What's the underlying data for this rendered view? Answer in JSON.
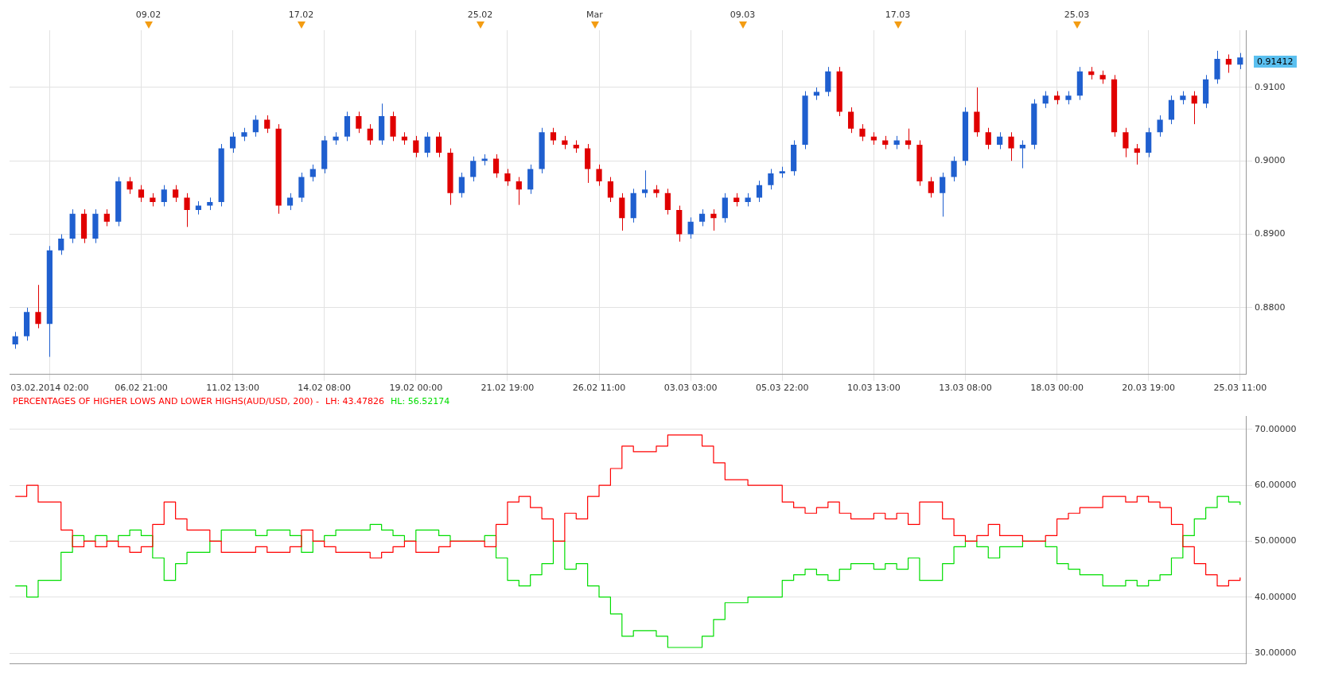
{
  "chart_data": [
    {
      "type": "candlestick",
      "categories": [
        null,
        null,
        null,
        "03.02.2014 02:00",
        null,
        null,
        null,
        null,
        null,
        null,
        null,
        "06.02 21:00",
        null,
        null,
        null,
        null,
        null,
        null,
        null,
        "11.02 13:00",
        null,
        null,
        null,
        null,
        null,
        null,
        null,
        "14.02 08:00",
        null,
        null,
        null,
        null,
        null,
        null,
        null,
        "19.02 00:00",
        null,
        null,
        null,
        null,
        null,
        null,
        null,
        "21.02 19:00",
        null,
        null,
        null,
        null,
        null,
        null,
        null,
        "26.02 11:00",
        null,
        null,
        null,
        null,
        null,
        null,
        null,
        "03.03 03:00",
        null,
        null,
        null,
        null,
        null,
        null,
        null,
        "05.03 22:00",
        null,
        null,
        null,
        null,
        null,
        null,
        null,
        "10.03 13:00",
        null,
        null,
        null,
        null,
        null,
        null,
        null,
        "13.03 08:00",
        null,
        null,
        null,
        null,
        null,
        null,
        null,
        "18.03 00:00",
        null,
        null,
        null,
        null,
        null,
        null,
        null,
        "20.03 19:00",
        null,
        null,
        null,
        null,
        null,
        null,
        null,
        "25.03 11:00"
      ],
      "ohlc": [
        [
          0.875,
          0.8767,
          0.8744,
          0.8761
        ],
        [
          0.8761,
          0.88,
          0.8755,
          0.8794
        ],
        [
          0.8794,
          0.8831,
          0.8772,
          0.8778
        ],
        [
          0.8778,
          0.8884,
          0.8733,
          0.8878
        ],
        [
          0.8878,
          0.89,
          0.8872,
          0.8894
        ],
        [
          0.8894,
          0.8934,
          0.8888,
          0.8928
        ],
        [
          0.8928,
          0.8934,
          0.8888,
          0.8894
        ],
        [
          0.8894,
          0.8934,
          0.8888,
          0.8928
        ],
        [
          0.8928,
          0.8934,
          0.8911,
          0.8917
        ],
        [
          0.8917,
          0.8978,
          0.8911,
          0.8972
        ],
        [
          0.8972,
          0.8978,
          0.8955,
          0.8961
        ],
        [
          0.8961,
          0.8967,
          0.8944,
          0.895
        ],
        [
          0.895,
          0.8956,
          0.8938,
          0.8944
        ],
        [
          0.8944,
          0.8967,
          0.8938,
          0.8961
        ],
        [
          0.8961,
          0.8967,
          0.8944,
          0.895
        ],
        [
          0.895,
          0.8956,
          0.891,
          0.8933
        ],
        [
          0.8933,
          0.8945,
          0.8927,
          0.8939
        ],
        [
          0.8939,
          0.895,
          0.8933,
          0.8944
        ],
        [
          0.8944,
          0.9023,
          0.8938,
          0.9017
        ],
        [
          0.9017,
          0.9039,
          0.9011,
          0.9033
        ],
        [
          0.9033,
          0.9045,
          0.9027,
          0.9039
        ],
        [
          0.9039,
          0.9062,
          0.9033,
          0.9056
        ],
        [
          0.9056,
          0.9062,
          0.9038,
          0.9044
        ],
        [
          0.9044,
          0.905,
          0.8928,
          0.8939
        ],
        [
          0.8939,
          0.8956,
          0.8933,
          0.895
        ],
        [
          0.895,
          0.8984,
          0.8944,
          0.8978
        ],
        [
          0.8978,
          0.8995,
          0.8972,
          0.8989
        ],
        [
          0.8989,
          0.9034,
          0.8983,
          0.9028
        ],
        [
          0.9028,
          0.9039,
          0.9022,
          0.9033
        ],
        [
          0.9033,
          0.9067,
          0.9027,
          0.9061
        ],
        [
          0.9061,
          0.9067,
          0.9038,
          0.9044
        ],
        [
          0.9044,
          0.905,
          0.9022,
          0.9028
        ],
        [
          0.9028,
          0.9078,
          0.9022,
          0.9061
        ],
        [
          0.9061,
          0.9067,
          0.9027,
          0.9033
        ],
        [
          0.9033,
          0.9039,
          0.9022,
          0.9028
        ],
        [
          0.9028,
          0.9034,
          0.9005,
          0.9011
        ],
        [
          0.9011,
          0.9039,
          0.9005,
          0.9033
        ],
        [
          0.9033,
          0.9039,
          0.9005,
          0.9011
        ],
        [
          0.9011,
          0.9017,
          0.894,
          0.8956
        ],
        [
          0.8956,
          0.8984,
          0.895,
          0.8978
        ],
        [
          0.8978,
          0.9006,
          0.8972,
          0.9
        ],
        [
          0.9,
          0.9009,
          0.8994,
          0.9003
        ],
        [
          0.9003,
          0.9009,
          0.8977,
          0.8983
        ],
        [
          0.8983,
          0.8989,
          0.8966,
          0.8972
        ],
        [
          0.8972,
          0.8978,
          0.894,
          0.8961
        ],
        [
          0.8961,
          0.8995,
          0.8955,
          0.8989
        ],
        [
          0.8989,
          0.9045,
          0.8983,
          0.9039
        ],
        [
          0.9039,
          0.9045,
          0.9022,
          0.9028
        ],
        [
          0.9028,
          0.9034,
          0.9016,
          0.9022
        ],
        [
          0.9022,
          0.9028,
          0.9011,
          0.9017
        ],
        [
          0.9017,
          0.9023,
          0.897,
          0.8989
        ],
        [
          0.8989,
          0.8995,
          0.8966,
          0.8972
        ],
        [
          0.8972,
          0.8978,
          0.8944,
          0.895
        ],
        [
          0.895,
          0.8956,
          0.8905,
          0.8922
        ],
        [
          0.8922,
          0.8962,
          0.8916,
          0.8956
        ],
        [
          0.8956,
          0.8987,
          0.895,
          0.8961
        ],
        [
          0.8961,
          0.8967,
          0.895,
          0.8956
        ],
        [
          0.8956,
          0.8962,
          0.8927,
          0.8933
        ],
        [
          0.8933,
          0.8939,
          0.889,
          0.89
        ],
        [
          0.89,
          0.8923,
          0.8894,
          0.8917
        ],
        [
          0.8917,
          0.8934,
          0.8911,
          0.8928
        ],
        [
          0.8928,
          0.8934,
          0.8905,
          0.8922
        ],
        [
          0.8922,
          0.8956,
          0.8916,
          0.895
        ],
        [
          0.895,
          0.8956,
          0.8938,
          0.8944
        ],
        [
          0.8944,
          0.8956,
          0.8938,
          0.895
        ],
        [
          0.895,
          0.8973,
          0.8944,
          0.8967
        ],
        [
          0.8967,
          0.8989,
          0.8961,
          0.8983
        ],
        [
          0.8983,
          0.8992,
          0.8977,
          0.8986
        ],
        [
          0.8986,
          0.9028,
          0.898,
          0.9022
        ],
        [
          0.9022,
          0.9095,
          0.9016,
          0.9089
        ],
        [
          0.9089,
          0.91,
          0.9083,
          0.9094
        ],
        [
          0.9094,
          0.9128,
          0.9088,
          0.9122
        ],
        [
          0.9122,
          0.9128,
          0.9061,
          0.9067
        ],
        [
          0.9067,
          0.9073,
          0.9038,
          0.9044
        ],
        [
          0.9044,
          0.905,
          0.9027,
          0.9033
        ],
        [
          0.9033,
          0.9039,
          0.9022,
          0.9028
        ],
        [
          0.9028,
          0.9034,
          0.9016,
          0.9022
        ],
        [
          0.9022,
          0.9034,
          0.9016,
          0.9028
        ],
        [
          0.9028,
          0.9044,
          0.9016,
          0.9022
        ],
        [
          0.9022,
          0.9028,
          0.8966,
          0.8972
        ],
        [
          0.8972,
          0.8978,
          0.895,
          0.8956
        ],
        [
          0.8956,
          0.8984,
          0.8924,
          0.8978
        ],
        [
          0.8978,
          0.9006,
          0.8972,
          0.9
        ],
        [
          0.9,
          0.9073,
          0.8994,
          0.9067
        ],
        [
          0.9067,
          0.91,
          0.9033,
          0.9039
        ],
        [
          0.9039,
          0.9045,
          0.9016,
          0.9022
        ],
        [
          0.9022,
          0.9039,
          0.9016,
          0.9033
        ],
        [
          0.9033,
          0.9039,
          0.9,
          0.9017
        ],
        [
          0.9017,
          0.9028,
          0.899,
          0.9022
        ],
        [
          0.9022,
          0.9084,
          0.9016,
          0.9078
        ],
        [
          0.9078,
          0.9095,
          0.9072,
          0.9089
        ],
        [
          0.9089,
          0.9095,
          0.9077,
          0.9083
        ],
        [
          0.9083,
          0.9095,
          0.9077,
          0.9089
        ],
        [
          0.9089,
          0.9128,
          0.9083,
          0.9122
        ],
        [
          0.9122,
          0.9128,
          0.9111,
          0.9117
        ],
        [
          0.9117,
          0.9123,
          0.9105,
          0.9111
        ],
        [
          0.9111,
          0.9117,
          0.9033,
          0.9039
        ],
        [
          0.9039,
          0.9045,
          0.9005,
          0.9017
        ],
        [
          0.9017,
          0.9023,
          0.8995,
          0.9011
        ],
        [
          0.9011,
          0.9045,
          0.9005,
          0.9039
        ],
        [
          0.9039,
          0.9062,
          0.9033,
          0.9056
        ],
        [
          0.9056,
          0.9089,
          0.905,
          0.9083
        ],
        [
          0.9083,
          0.9095,
          0.9077,
          0.9089
        ],
        [
          0.9089,
          0.9095,
          0.905,
          0.9078
        ],
        [
          0.9078,
          0.9117,
          0.9072,
          0.9111
        ],
        [
          0.9111,
          0.915,
          0.9105,
          0.9139
        ],
        [
          0.9139,
          0.9145,
          0.912,
          0.9131
        ],
        [
          0.9131,
          0.9147,
          0.9125,
          0.9141
        ]
      ],
      "ylim": [
        0.8709,
        0.9178
      ],
      "yticks": [
        {
          "value": 0.88,
          "label": "0.8800"
        },
        {
          "value": 0.89,
          "label": "0.8900"
        },
        {
          "value": 0.9,
          "label": "0.9000"
        },
        {
          "value": 0.91,
          "label": "0.9100"
        }
      ],
      "annotations": [
        "09.02",
        "17.02",
        "25.02",
        "Mar",
        "09.03",
        "17.03",
        "25.03",
        "0.91412"
      ],
      "grid": true
    },
    {
      "type": "step",
      "title": "PERCENTAGES OF HIGHER LOWS AND LOWER HIGHS(AUD/USD, 200) -",
      "categories": [
        null,
        null,
        null,
        null,
        null,
        null,
        null,
        null,
        null,
        null,
        null,
        null,
        null,
        null,
        null,
        null,
        null,
        null,
        null,
        null,
        null,
        null,
        null,
        null,
        null,
        null,
        null,
        null,
        null,
        null,
        null,
        null,
        null,
        null,
        null,
        null,
        null,
        null,
        null,
        null,
        null,
        null,
        null,
        null,
        null,
        null,
        null,
        null,
        null,
        null,
        null,
        null,
        null,
        null,
        null,
        null,
        null,
        null,
        null,
        null,
        null,
        null,
        null,
        null,
        null,
        null,
        null,
        null,
        null,
        null,
        null,
        null,
        null,
        null,
        null,
        null,
        null,
        null,
        null,
        null,
        null,
        null,
        null,
        null,
        null,
        null,
        null,
        null,
        null,
        null,
        null,
        null,
        null,
        null,
        null,
        null,
        null,
        null,
        null,
        null,
        null,
        null,
        null,
        null,
        null,
        null,
        null,
        null
      ],
      "series": [
        {
          "name": "LH: 43.47826",
          "color": "#ff0000",
          "values": [
            58,
            60,
            57,
            57,
            52,
            49,
            50,
            49,
            50,
            49,
            48,
            49,
            53,
            57,
            54,
            52,
            52,
            50,
            48,
            48,
            48,
            49,
            48,
            48,
            49,
            52,
            50,
            49,
            48,
            48,
            48,
            47,
            48,
            49,
            50,
            48,
            48,
            49,
            50,
            50,
            50,
            49,
            53,
            57,
            58,
            56,
            54,
            50,
            55,
            54,
            58,
            60,
            63,
            67,
            66,
            66,
            67,
            69,
            69,
            69,
            67,
            64,
            61,
            61,
            60,
            60,
            60,
            57,
            56,
            55,
            56,
            57,
            55,
            54,
            54,
            55,
            54,
            55,
            53,
            57,
            57,
            54,
            51,
            50,
            51,
            53,
            51,
            51,
            50,
            50,
            51,
            54,
            55,
            56,
            56,
            58,
            58,
            57,
            58,
            57,
            56,
            53,
            49,
            46,
            44,
            42,
            43,
            43.5
          ]
        },
        {
          "name": "HL: 56.52174",
          "color": "#00dd00",
          "values": [
            42,
            40,
            43,
            43,
            48,
            51,
            50,
            51,
            50,
            51,
            52,
            51,
            47,
            43,
            46,
            48,
            48,
            50,
            52,
            52,
            52,
            51,
            52,
            52,
            51,
            48,
            50,
            51,
            52,
            52,
            52,
            53,
            52,
            51,
            50,
            52,
            52,
            51,
            50,
            50,
            50,
            51,
            47,
            43,
            42,
            44,
            46,
            50,
            45,
            46,
            42,
            40,
            37,
            33,
            34,
            34,
            33,
            31,
            31,
            31,
            33,
            36,
            39,
            39,
            40,
            40,
            40,
            43,
            44,
            45,
            44,
            43,
            45,
            46,
            46,
            45,
            46,
            45,
            47,
            43,
            43,
            46,
            49,
            50,
            49,
            47,
            49,
            49,
            50,
            50,
            49,
            46,
            45,
            44,
            44,
            42,
            42,
            43,
            42,
            43,
            44,
            47,
            51,
            54,
            56,
            58,
            57,
            56.5
          ]
        }
      ],
      "ylim": [
        28.1,
        72.3
      ],
      "yticks": [
        {
          "value": 30,
          "label": "30.00000"
        },
        {
          "value": 40,
          "label": "40.00000"
        },
        {
          "value": 50,
          "label": "50.00000"
        },
        {
          "value": 60,
          "label": "60.00000"
        },
        {
          "value": 70,
          "label": "70.00000"
        }
      ],
      "grid": true,
      "legend": "top left",
      "tick_labels": "y",
      "marker": "none"
    }
  ]
}
